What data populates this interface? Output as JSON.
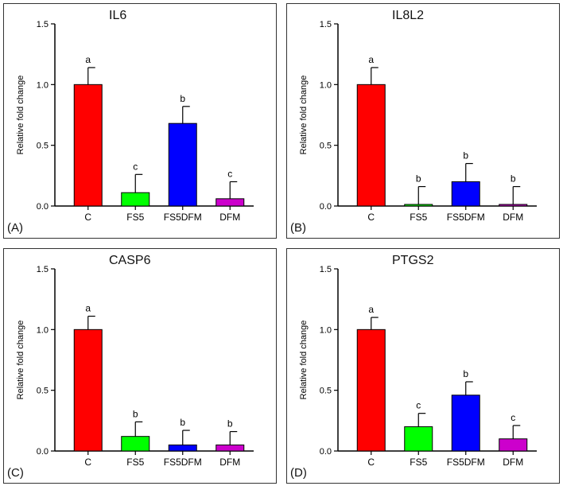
{
  "chart_data": [
    {
      "type": "bar",
      "panel_label": "(A)",
      "title": "IL6",
      "ylabel": "Relative fold change",
      "ylim": [
        0,
        1.5
      ],
      "yticks": [
        "0.0",
        "0.5",
        "1.0",
        "1.5"
      ],
      "categories": [
        "C",
        "FS5",
        "FS5DFM",
        "DFM"
      ],
      "values": [
        1.0,
        0.11,
        0.68,
        0.06
      ],
      "errors": [
        0.14,
        0.15,
        0.14,
        0.14
      ],
      "letters": [
        "a",
        "c",
        "b",
        "c"
      ],
      "colors": [
        "#ff0000",
        "#00ff00",
        "#0000ff",
        "#cc00cc"
      ]
    },
    {
      "type": "bar",
      "panel_label": "(B)",
      "title": "IL8L2",
      "ylabel": "Relative fold change",
      "ylim": [
        0,
        1.5
      ],
      "yticks": [
        "0.0",
        "0.5",
        "1.0",
        "1.5"
      ],
      "categories": [
        "C",
        "FS5",
        "FS5DFM",
        "DFM"
      ],
      "values": [
        1.0,
        0.01,
        0.2,
        0.01
      ],
      "errors": [
        0.14,
        0.15,
        0.15,
        0.15
      ],
      "letters": [
        "a",
        "b",
        "b",
        "b"
      ],
      "colors": [
        "#ff0000",
        "#00ff00",
        "#0000ff",
        "#cc00cc"
      ]
    },
    {
      "type": "bar",
      "panel_label": "(C)",
      "title": "CASP6",
      "ylabel": "Relative fold change",
      "ylim": [
        0,
        1.5
      ],
      "yticks": [
        "0.0",
        "0.5",
        "1.0",
        "1.5"
      ],
      "categories": [
        "C",
        "FS5",
        "FS5DFM",
        "DFM"
      ],
      "values": [
        1.0,
        0.12,
        0.05,
        0.05
      ],
      "errors": [
        0.11,
        0.12,
        0.12,
        0.11
      ],
      "letters": [
        "a",
        "b",
        "b",
        "b"
      ],
      "colors": [
        "#ff0000",
        "#00ff00",
        "#0000ff",
        "#cc00cc"
      ]
    },
    {
      "type": "bar",
      "panel_label": "(D)",
      "title": "PTGS2",
      "ylabel": "Relative fold change",
      "ylim": [
        0,
        1.5
      ],
      "yticks": [
        "0.0",
        "0.5",
        "1.0",
        "1.5"
      ],
      "categories": [
        "C",
        "FS5",
        "FS5DFM",
        "DFM"
      ],
      "values": [
        1.0,
        0.2,
        0.46,
        0.1
      ],
      "errors": [
        0.1,
        0.11,
        0.11,
        0.11
      ],
      "letters": [
        "a",
        "c",
        "b",
        "c"
      ],
      "colors": [
        "#ff0000",
        "#00ff00",
        "#0000ff",
        "#cc00cc"
      ]
    }
  ]
}
